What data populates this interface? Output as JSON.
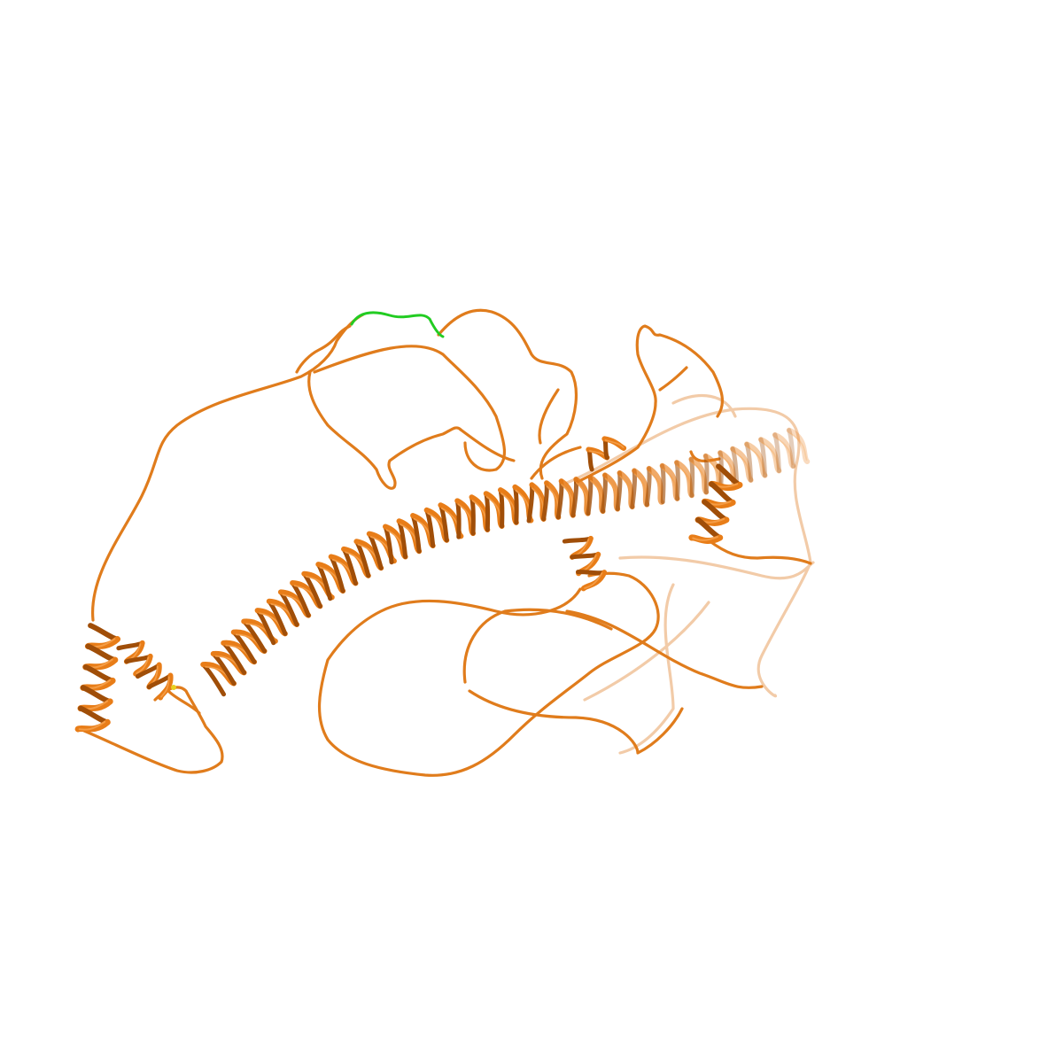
{
  "scene": {
    "background": "#ffffff",
    "colors": {
      "ribbon": "#e87d18",
      "ribbon_dark": "#a04e08",
      "ribbon_light": "#f5a04a",
      "coil": "#e07c1c",
      "coil_shadow": "#9a5010",
      "highlight_segment": "#22cc22",
      "small_marker": "#e8d020"
    },
    "representation": "cartoon",
    "depth_cue": true,
    "highlight_segment": "green",
    "main_helix": "orange"
  }
}
